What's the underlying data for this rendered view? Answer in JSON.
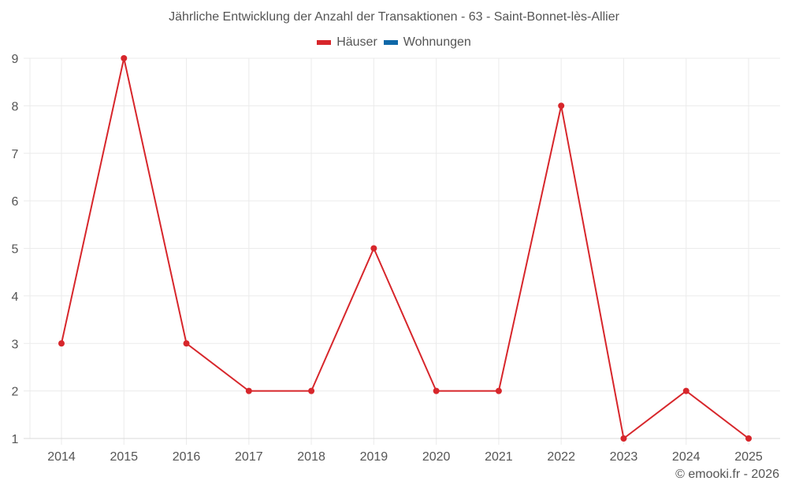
{
  "chart_data": {
    "type": "line",
    "title": "Jährliche Entwicklung der Anzahl der Transaktionen - 63 - Saint-Bonnet-lès-Allier",
    "xlabel": "",
    "ylabel": "",
    "categories": [
      "2014",
      "2015",
      "2016",
      "2017",
      "2018",
      "2019",
      "2020",
      "2021",
      "2022",
      "2023",
      "2024",
      "2025"
    ],
    "series": [
      {
        "name": "Häuser",
        "color": "#d7262b",
        "values": [
          3,
          9,
          3,
          2,
          2,
          5,
          2,
          2,
          8,
          1,
          2,
          1
        ]
      },
      {
        "name": "Wohnungen",
        "color": "#0f68a8",
        "values": []
      }
    ],
    "ylim": [
      1,
      9
    ],
    "yticks": [
      "1",
      "2",
      "3",
      "4",
      "5",
      "6",
      "7",
      "8",
      "9"
    ],
    "grid": true,
    "legend_position": "top"
  },
  "header": {
    "title": "Jährliche Entwicklung der Anzahl der Transaktionen - 63 - Saint-Bonnet-lès-Allier"
  },
  "legend": {
    "items": [
      {
        "label": "Häuser",
        "color": "#d7262b"
      },
      {
        "label": "Wohnungen",
        "color": "#0f68a8"
      }
    ]
  },
  "footer": {
    "credit": "© emooki.fr - 2026"
  }
}
